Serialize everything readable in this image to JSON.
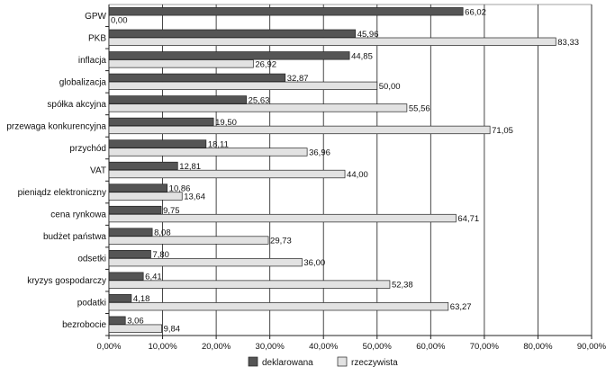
{
  "chart_data": {
    "type": "bar",
    "orientation": "horizontal",
    "categories": [
      "GPW",
      "PKB",
      "inflacja",
      "globalizacja",
      "spółka akcyjna",
      "przewaga konkurencyjna",
      "przychód",
      "VAT",
      "pieniądz elektroniczny",
      "cena rynkowa",
      "budżet państwa",
      "odsetki",
      "kryzys gospodarczy",
      "podatki",
      "bezrobocie"
    ],
    "series": [
      {
        "name": "deklarowana",
        "color": "#555555",
        "values": [
          66.02,
          45.96,
          44.85,
          32.87,
          25.63,
          19.5,
          18.11,
          12.81,
          10.86,
          9.75,
          8.08,
          7.8,
          6.41,
          4.18,
          3.06
        ]
      },
      {
        "name": "rzeczywista",
        "color": "#e2e2e2",
        "values": [
          0.0,
          83.33,
          26.92,
          50.0,
          55.56,
          71.05,
          36.96,
          44.0,
          13.64,
          64.71,
          29.73,
          36.0,
          52.38,
          63.27,
          9.84
        ]
      }
    ],
    "value_labels": [
      [
        "66,02",
        "45,96",
        "44,85",
        "32,87",
        "25,63",
        "19,50",
        "18,11",
        "12,81",
        "10,86",
        "9,75",
        "8,08",
        "7,80",
        "6,41",
        "4,18",
        "3,06"
      ],
      [
        "0,00",
        "83,33",
        "26,92",
        "50,00",
        "55,56",
        "71,05",
        "36,96",
        "44,00",
        "13,64",
        "64,71",
        "29,73",
        "36,00",
        "52,38",
        "63,27",
        "9,84"
      ]
    ],
    "xlim": [
      0,
      90
    ],
    "xticks": [
      0,
      10,
      20,
      30,
      40,
      50,
      60,
      70,
      80,
      90
    ],
    "xtick_labels": [
      "0,00%",
      "10,00%",
      "20,00%",
      "30,00%",
      "40,00%",
      "50,00%",
      "60,00%",
      "70,00%",
      "80,00%",
      "90,00%"
    ],
    "grid": "vertical",
    "legend_position": "bottom"
  }
}
